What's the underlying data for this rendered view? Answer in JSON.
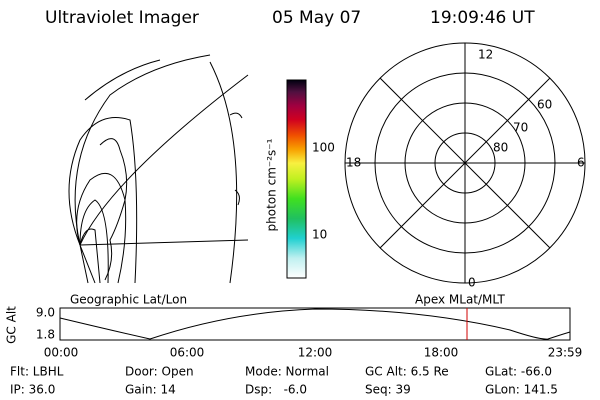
{
  "header": {
    "title": "Ultraviolet Imager",
    "date": "05 May 07",
    "time": "19:09:46 UT"
  },
  "colorbar": {
    "label": "photon cm⁻²s⁻¹",
    "ticks": [
      "100",
      "10"
    ]
  },
  "polar_plot": {
    "mlt_labels": [
      "12",
      "18",
      "6",
      "0"
    ],
    "lat_labels": [
      "60",
      "70",
      "80"
    ]
  },
  "altitude_panel": {
    "left_title": "Geographic Lat/Lon",
    "right_title": "Apex MLat/MLT",
    "axis_label": "GC Alt",
    "ticks": [
      "9.0",
      "1.8"
    ],
    "time_ticks": [
      "00:00",
      "06:00",
      "12:00",
      "18:00",
      "23:59"
    ]
  },
  "footer": {
    "rows": [
      [
        "Flt: LBHL",
        "Door: Open",
        "Mode: Normal",
        "GC Alt: 6.5 Re",
        "GLat: -66.0"
      ],
      [
        "IP: 36.0",
        "Gain: 14",
        "Dsp:   -6.0",
        "Seq: 39",
        "GLon: 141.5"
      ]
    ]
  }
}
